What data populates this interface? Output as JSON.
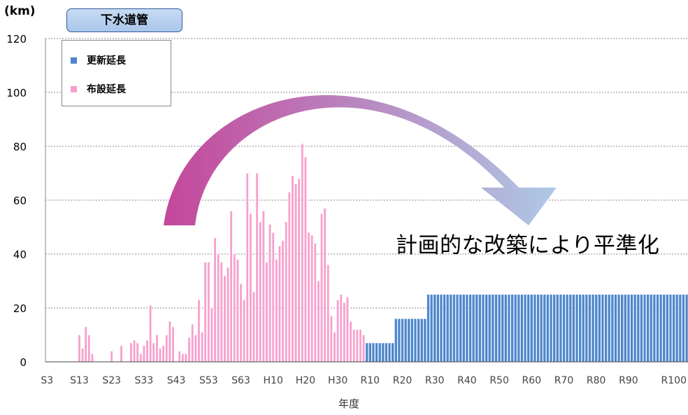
{
  "header": {
    "unit": "(km)",
    "title": "下水道管"
  },
  "annotation": "計画的な改築により平準化",
  "colors": {
    "laying": "#f7a0cd",
    "laying_edge": "#ffffff",
    "renewal": "#4f86cc",
    "grid": "#8a8a8a",
    "arrow_start": "#c4469a",
    "arrow_end": "#aec9e6"
  },
  "chart_data": {
    "type": "bar",
    "title": "下水道管",
    "xlabel": "年度",
    "ylabel": "(km)",
    "ylim": [
      0,
      120
    ],
    "yticks": [
      0,
      20,
      40,
      60,
      80,
      100,
      120
    ],
    "grid": true,
    "legend_position": "top-left",
    "x_tick_labels": [
      "S3",
      "S13",
      "S23",
      "S33",
      "S43",
      "S53",
      "S63",
      "H10",
      "H20",
      "H30",
      "R10",
      "R20",
      "R30",
      "R40",
      "R50",
      "R60",
      "R70",
      "R80",
      "R90",
      "R100"
    ],
    "series": [
      {
        "name": "更新延長",
        "start_year": "R1",
        "segments": [
          {
            "from": "R1",
            "to": "R9",
            "value": 7
          },
          {
            "from": "R10",
            "to": "R19",
            "value": 16
          },
          {
            "from": "R20",
            "to": "R100",
            "value": 25
          }
        ]
      },
      {
        "name": "布設延長",
        "start_year": "S3",
        "values": [
          0,
          0,
          0,
          0,
          0,
          0,
          0,
          0,
          0,
          0,
          10,
          5,
          13,
          10,
          3,
          0,
          0,
          0,
          0,
          0,
          4,
          0,
          0,
          6,
          0,
          0,
          7,
          8,
          7,
          3,
          6,
          8,
          21,
          7,
          10,
          5,
          6,
          10,
          15,
          13,
          0,
          4,
          3,
          3,
          9,
          14,
          10,
          23,
          11,
          37,
          37,
          20,
          46,
          40,
          37,
          32,
          35,
          56,
          40,
          38,
          29,
          23,
          70,
          55,
          26,
          70,
          52,
          56,
          37,
          51,
          48,
          38,
          43,
          45,
          52,
          63,
          69,
          66,
          68,
          81,
          76,
          48,
          47,
          44,
          30,
          55,
          57,
          36,
          17,
          11,
          23,
          25,
          22,
          24,
          15,
          12,
          12,
          12,
          10
        ]
      }
    ]
  }
}
